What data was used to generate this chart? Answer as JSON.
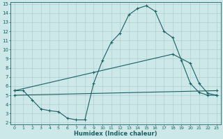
{
  "xlabel": "Humidex (Indice chaleur)",
  "background_color": "#cce8e8",
  "grid_color": "#aac8c8",
  "line_color": "#1a6060",
  "xlim": [
    -0.5,
    23.5
  ],
  "ylim": [
    1.8,
    15.2
  ],
  "xticks": [
    0,
    1,
    2,
    3,
    4,
    5,
    6,
    7,
    8,
    9,
    10,
    11,
    12,
    13,
    14,
    15,
    16,
    17,
    18,
    19,
    20,
    21,
    22,
    23
  ],
  "yticks": [
    2,
    3,
    4,
    5,
    6,
    7,
    8,
    9,
    10,
    11,
    12,
    13,
    14,
    15
  ],
  "line1_x": [
    0,
    1,
    2,
    3,
    4,
    5,
    6,
    7,
    8,
    9,
    10,
    11,
    12,
    13,
    14,
    15,
    16,
    17,
    18,
    19,
    20,
    21,
    22,
    23
  ],
  "line1_y": [
    5.5,
    5.5,
    4.5,
    3.5,
    3.3,
    3.2,
    2.5,
    2.3,
    2.3,
    6.3,
    8.8,
    10.8,
    11.8,
    13.8,
    14.5,
    14.8,
    14.2,
    12.0,
    11.3,
    8.8,
    6.3,
    5.3,
    5.0,
    5.0
  ],
  "line2_x": [
    0,
    9,
    18,
    20,
    21,
    22,
    23
  ],
  "line2_y": [
    5.5,
    7.5,
    9.5,
    8.5,
    6.3,
    5.2,
    5.0
  ],
  "line3_x": [
    0,
    23
  ],
  "line3_y": [
    5.0,
    5.5
  ]
}
